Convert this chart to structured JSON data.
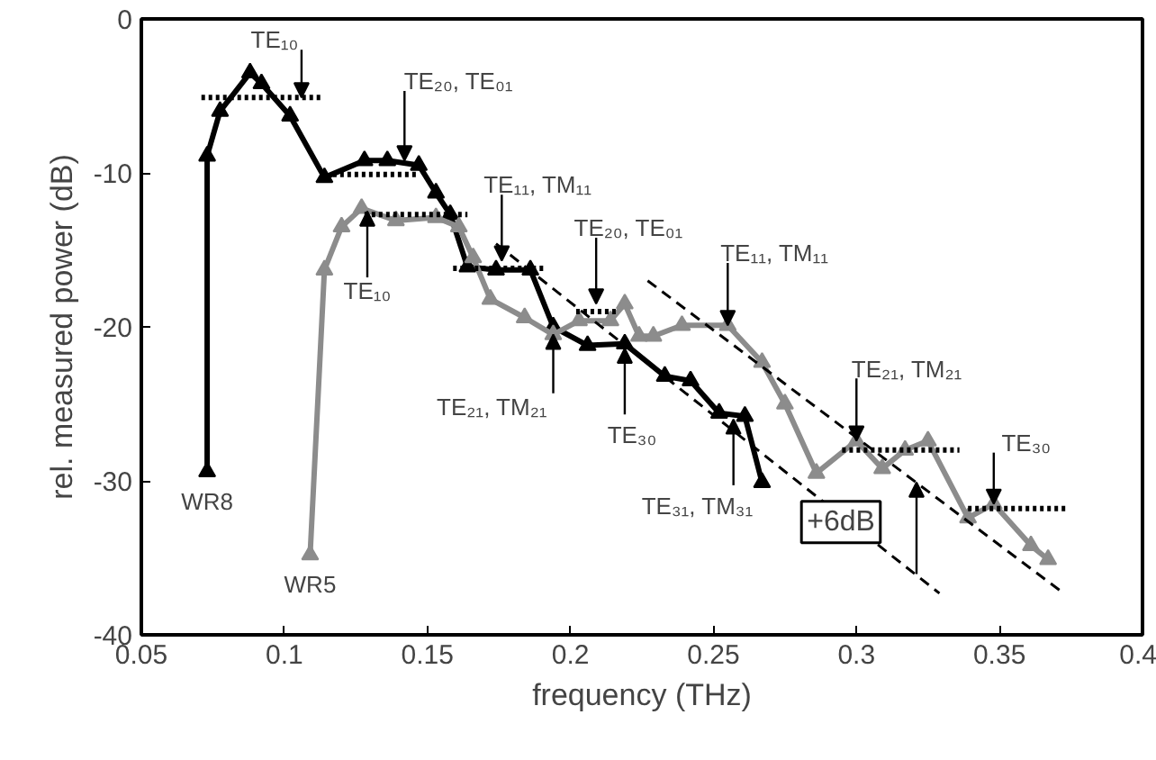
{
  "chart_data": {
    "type": "line",
    "xlabel": "frequency (THz)",
    "ylabel": "rel. measured power (dB)",
    "xlim": [
      0.05,
      0.4
    ],
    "ylim": [
      -40,
      0
    ],
    "xticks": [
      0.05,
      0.1,
      0.15,
      0.2,
      0.25,
      0.3,
      0.35,
      0.4
    ],
    "yticks": [
      -40,
      -30,
      -20,
      -10,
      0
    ],
    "grid": false,
    "series": [
      {
        "name": "WR8",
        "color": "#000000",
        "marker": "triangle",
        "line_style": "solid",
        "x": [
          0.073,
          0.073,
          0.0775,
          0.088,
          0.092,
          0.102,
          0.114,
          0.128,
          0.136,
          0.147,
          0.153,
          0.158,
          0.164,
          0.174,
          0.186,
          0.194,
          0.206,
          0.219,
          0.233,
          0.242,
          0.252,
          0.261,
          0.267
        ],
        "values": [
          -29.4,
          -8.9,
          -6.0,
          -3.5,
          -4.2,
          -6.3,
          -10.3,
          -9.2,
          -9.2,
          -9.5,
          -11.3,
          -12.7,
          -16.1,
          -16.3,
          -16.3,
          -20.0,
          -21.2,
          -21.1,
          -23.2,
          -23.5,
          -25.6,
          -25.8,
          -30.1
        ]
      },
      {
        "name": "WR5",
        "color": "#8c8c8c",
        "marker": "triangle",
        "line_style": "solid",
        "x": [
          0.109,
          0.114,
          0.12,
          0.127,
          0.139,
          0.153,
          0.161,
          0.166,
          0.172,
          0.184,
          0.194,
          0.203,
          0.214,
          0.219,
          0.224,
          0.229,
          0.239,
          0.255,
          0.267,
          0.275,
          0.286,
          0.3,
          0.309,
          0.317,
          0.325,
          0.339,
          0.348,
          0.361,
          0.367
        ],
        "values": [
          -34.8,
          -16.3,
          -13.5,
          -12.3,
          -13.1,
          -12.9,
          -13.5,
          -15.5,
          -18.2,
          -19.4,
          -20.5,
          -19.6,
          -19.6,
          -18.5,
          -20.6,
          -20.6,
          -19.9,
          -19.9,
          -22.3,
          -25.0,
          -29.5,
          -27.4,
          -29.2,
          -28.0,
          -27.4,
          -32.4,
          -31.5,
          -34.2,
          -35.1
        ]
      },
      {
        "color": "#000000",
        "marker": "none",
        "line_style": "dotted",
        "x": [
          0.071,
          0.113
        ],
        "values": [
          -5.1,
          -5.1
        ]
      },
      {
        "color": "#000000",
        "marker": "none",
        "line_style": "dotted",
        "x": [
          0.117,
          0.147
        ],
        "values": [
          -10.1,
          -10.1
        ]
      },
      {
        "color": "#000000",
        "marker": "none",
        "line_style": "dotted",
        "x": [
          0.128,
          0.164
        ],
        "values": [
          -12.7,
          -12.7
        ]
      },
      {
        "color": "#000000",
        "marker": "none",
        "line_style": "dotted",
        "x": [
          0.159,
          0.191
        ],
        "values": [
          -16.2,
          -16.2
        ]
      },
      {
        "color": "#000000",
        "marker": "none",
        "line_style": "dotted",
        "x": [
          0.202,
          0.217
        ],
        "values": [
          -19.0,
          -19.0
        ]
      },
      {
        "color": "#000000",
        "marker": "none",
        "line_style": "dotted",
        "x": [
          0.295,
          0.336
        ],
        "values": [
          -28.0,
          -28.0
        ]
      },
      {
        "color": "#000000",
        "marker": "none",
        "line_style": "dotted",
        "x": [
          0.339,
          0.374
        ],
        "values": [
          -31.8,
          -31.8
        ]
      },
      {
        "color": "#000000",
        "marker": "none",
        "line_style": "dashed",
        "x": [
          0.174,
          0.329
        ],
        "values": [
          -14.6,
          -37.3
        ]
      },
      {
        "color": "#000000",
        "marker": "none",
        "line_style": "dashed",
        "x": [
          0.227,
          0.371
        ],
        "values": [
          -17.0,
          -37.1
        ]
      }
    ],
    "annotations": [
      {
        "text": "TE₁₀",
        "x": 0.106,
        "y": -5.1
      },
      {
        "text": "TE₂₀, TE₀₁",
        "x": 0.142,
        "y": -9.2
      },
      {
        "text": "TE₁₀",
        "x": 0.129,
        "y": -12.5
      },
      {
        "text": "TE₁₁, TM₁₁",
        "x": 0.176,
        "y": -15.7
      },
      {
        "text": "TE₂₀, TE₀₁",
        "x": 0.209,
        "y": -18.5
      },
      {
        "text": "TE₁₁, TM₁₁",
        "x": 0.255,
        "y": -19.9
      },
      {
        "text": "TE₂₁, TM₂₁",
        "x": 0.194,
        "y": -20.5
      },
      {
        "text": "TE₃₀",
        "x": 0.219,
        "y": -21.4
      },
      {
        "text": "TE₃₁, TM₃₁",
        "x": 0.257,
        "y": -26.0
      },
      {
        "text": "TE₂₁, TM₂₁",
        "x": 0.3,
        "y": -27.4
      },
      {
        "text": "TE₃₀",
        "x": 0.348,
        "y": -31.5
      },
      {
        "text": "+6dB",
        "x": 0.321,
        "y": -30.1
      }
    ]
  }
}
